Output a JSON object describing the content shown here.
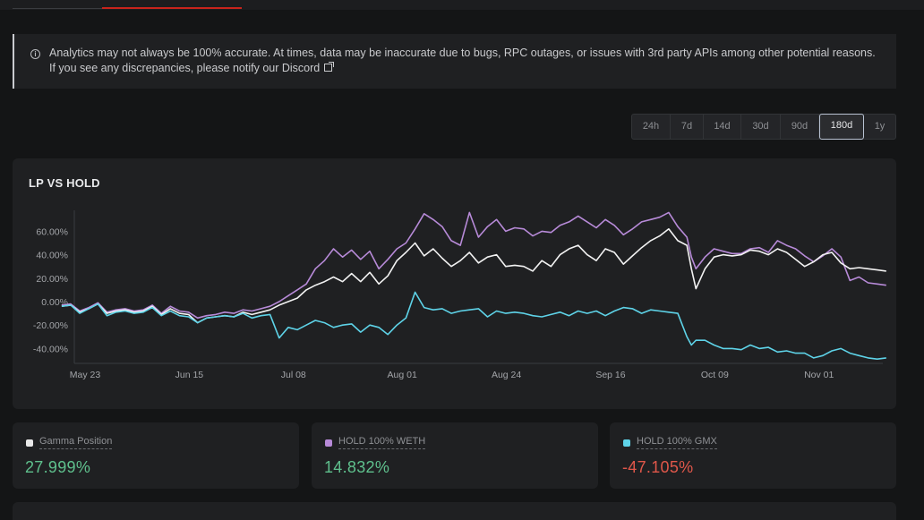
{
  "notice": {
    "text": "Analytics may not always be 100% accurate. At times, data may be inaccurate due to bugs, RPC outages, or issues with 3rd party APIs among other potential reasons. If you see any discrepancies, please notify our Discord",
    "icon": "info-icon",
    "link_icon": "external-link-icon"
  },
  "ranges": [
    "24h",
    "7d",
    "14d",
    "30d",
    "90d",
    "180d",
    "1y"
  ],
  "active_range": "180d",
  "chart_title": "LP VS HOLD",
  "stats": [
    {
      "label": "Gamma Position",
      "value": "27.999%",
      "color": "#e8e8e8",
      "value_color": "#5fc08d"
    },
    {
      "label": "HOLD 100% WETH",
      "value": "14.832%",
      "color": "#b78ad8",
      "value_color": "#5fc08d"
    },
    {
      "label": "HOLD 100% GMX",
      "value": "-47.105%",
      "color": "#5ed3e8",
      "value_color": "#e0574a"
    }
  ],
  "chart_data": {
    "type": "line",
    "title": "LP VS HOLD",
    "xlabel": "",
    "ylabel": "",
    "ylim": [
      -52,
      78
    ],
    "yticks": [
      -40,
      -20,
      0,
      20,
      40,
      60
    ],
    "ytick_labels": [
      "-40.00%",
      "-20.00%",
      "0.00%",
      "20.00%",
      "40.00%",
      "60.00%"
    ],
    "xlim": [
      0,
      178
    ],
    "xticks": [
      {
        "x": 0,
        "label": "May 23"
      },
      {
        "x": 23,
        "label": "Jun 15"
      },
      {
        "x": 46,
        "label": "Jul 08"
      },
      {
        "x": 70,
        "label": "Aug 01"
      },
      {
        "x": 93,
        "label": "Aug 24"
      },
      {
        "x": 116,
        "label": "Sep 16"
      },
      {
        "x": 139,
        "label": "Oct 09"
      },
      {
        "x": 162,
        "label": "Nov 01"
      }
    ],
    "grid": false,
    "legend": "none",
    "series": [
      {
        "name": "HOLD 100% WETH",
        "color": "#b78ad8",
        "x": [
          -2,
          0,
          2,
          4,
          6,
          8,
          10,
          12,
          14,
          16,
          18,
          20,
          22,
          24,
          26,
          28,
          30,
          32,
          34,
          36,
          38,
          40,
          42,
          44,
          46,
          48,
          50,
          52,
          54,
          56,
          58,
          60,
          62,
          64,
          66,
          68,
          70,
          72,
          74,
          76,
          78,
          80,
          82,
          84,
          86,
          88,
          90,
          92,
          94,
          96,
          98,
          100,
          102,
          104,
          106,
          108,
          110,
          112,
          114,
          116,
          118,
          120,
          122,
          124,
          126,
          128,
          130,
          132,
          134,
          136,
          137,
          138,
          140,
          142,
          144,
          146,
          148,
          150,
          152,
          154,
          156,
          158,
          160,
          162,
          164,
          166,
          168,
          170,
          172,
          174,
          176,
          178,
          180
        ],
        "y": [
          -3,
          -2,
          -8,
          -5,
          -1,
          -9,
          -7,
          -6,
          -8,
          -7,
          -3,
          -10,
          -4,
          -8,
          -9,
          -14,
          -12,
          -11,
          -9,
          -10,
          -7,
          -8,
          -6,
          -4,
          0,
          5,
          10,
          15,
          28,
          35,
          45,
          38,
          44,
          36,
          43,
          28,
          36,
          45,
          50,
          62,
          75,
          70,
          64,
          52,
          48,
          76,
          55,
          64,
          70,
          60,
          63,
          62,
          56,
          60,
          59,
          65,
          68,
          73,
          68,
          63,
          70,
          65,
          57,
          62,
          68,
          70,
          72,
          76,
          64,
          55,
          38,
          28,
          38,
          45,
          43,
          41,
          41,
          45,
          46,
          42,
          52,
          48,
          45,
          39,
          34,
          39,
          45,
          38,
          18,
          21,
          16,
          15,
          14
        ]
      },
      {
        "name": "Gamma Position",
        "color": "#f2f2f2",
        "x": [
          -2,
          0,
          2,
          4,
          6,
          8,
          10,
          12,
          14,
          16,
          18,
          20,
          22,
          24,
          26,
          28,
          30,
          32,
          34,
          36,
          38,
          40,
          42,
          44,
          46,
          48,
          50,
          52,
          54,
          56,
          58,
          60,
          62,
          64,
          66,
          68,
          70,
          72,
          74,
          76,
          78,
          80,
          82,
          84,
          86,
          88,
          90,
          92,
          94,
          96,
          98,
          100,
          102,
          104,
          106,
          108,
          110,
          112,
          114,
          116,
          118,
          120,
          122,
          124,
          126,
          128,
          130,
          132,
          134,
          136,
          137,
          138,
          140,
          142,
          144,
          146,
          148,
          150,
          152,
          154,
          156,
          158,
          160,
          162,
          164,
          166,
          168,
          170,
          172,
          174,
          176,
          178,
          180
        ],
        "y": [
          -4,
          -3,
          -9,
          -6,
          -2,
          -10,
          -8,
          -7,
          -9,
          -8,
          -4,
          -11,
          -6,
          -10,
          -11,
          -18,
          -14,
          -13,
          -12,
          -13,
          -9,
          -11,
          -9,
          -7,
          -3,
          0,
          3,
          10,
          14,
          17,
          21,
          17,
          24,
          17,
          25,
          15,
          22,
          35,
          42,
          50,
          39,
          45,
          37,
          30,
          35,
          42,
          33,
          38,
          40,
          30,
          31,
          30,
          26,
          35,
          30,
          40,
          45,
          48,
          40,
          35,
          45,
          42,
          32,
          39,
          46,
          52,
          56,
          62,
          52,
          48,
          28,
          11,
          28,
          38,
          40,
          39,
          40,
          44,
          43,
          40,
          45,
          42,
          36,
          30,
          34,
          40,
          42,
          33,
          28,
          29,
          28,
          27,
          26
        ]
      },
      {
        "name": "HOLD 100% GMX",
        "color": "#5ed3e8",
        "x": [
          -2,
          0,
          2,
          4,
          6,
          8,
          10,
          12,
          14,
          16,
          18,
          20,
          22,
          24,
          26,
          28,
          30,
          32,
          34,
          36,
          38,
          40,
          42,
          44,
          46,
          48,
          50,
          52,
          54,
          56,
          58,
          60,
          62,
          64,
          66,
          68,
          70,
          72,
          74,
          76,
          78,
          80,
          82,
          84,
          86,
          88,
          90,
          92,
          94,
          96,
          98,
          100,
          102,
          104,
          106,
          108,
          110,
          112,
          114,
          116,
          118,
          120,
          122,
          124,
          126,
          128,
          130,
          132,
          134,
          136,
          137,
          138,
          140,
          142,
          144,
          146,
          148,
          150,
          152,
          154,
          156,
          158,
          160,
          162,
          164,
          166,
          168,
          170,
          172,
          174,
          176,
          178,
          180
        ],
        "y": [
          -4,
          -3,
          -10,
          -6,
          -2,
          -12,
          -9,
          -8,
          -10,
          -9,
          -5,
          -12,
          -8,
          -12,
          -13,
          -18,
          -14,
          -13,
          -12,
          -13,
          -10,
          -14,
          -12,
          -11,
          -31,
          -22,
          -24,
          -20,
          -16,
          -18,
          -22,
          -20,
          -19,
          -26,
          -20,
          -22,
          -28,
          -20,
          -14,
          8,
          -5,
          -7,
          -6,
          -10,
          -8,
          -7,
          -6,
          -13,
          -8,
          -10,
          -9,
          -10,
          -12,
          -13,
          -11,
          -9,
          -12,
          -8,
          -10,
          -8,
          -12,
          -8,
          -5,
          -6,
          -10,
          -7,
          -8,
          -9,
          -10,
          -30,
          -37,
          -33,
          -33,
          -37,
          -40,
          -40,
          -41,
          -37,
          -40,
          -39,
          -43,
          -42,
          -44,
          -44,
          -48,
          -46,
          -42,
          -40,
          -44,
          -46,
          -48,
          -49,
          -48
        ]
      }
    ]
  }
}
